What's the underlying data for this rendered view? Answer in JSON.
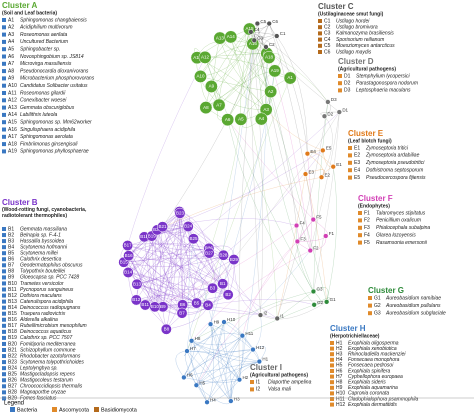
{
  "clusters": [
    {
      "title": "Cluster A",
      "subtitle": "(Soil and Leaf bacteria)",
      "items": [
        {
          "id": "A1",
          "name": "Sphingomonas changbaiensis"
        },
        {
          "id": "A2",
          "name": "Acidiphilium multivorum"
        },
        {
          "id": "A3",
          "name": "Roseomonas aerilata"
        },
        {
          "id": "A4",
          "name": "Uncultured Bacterium"
        },
        {
          "id": "A5",
          "name": "Sphingobacter sp."
        },
        {
          "id": "A6",
          "name": "Novosphingobium sp. JS814"
        },
        {
          "id": "A7",
          "name": "Microvirga massiliensis"
        },
        {
          "id": "A8",
          "name": "Pseudonocardia dioxanivorans"
        },
        {
          "id": "A9",
          "name": "Microbacterium phosphorovorans"
        },
        {
          "id": "A10",
          "name": "Candidatus Solibacter usitatus"
        },
        {
          "id": "A11",
          "name": "Roseomonas gilardii"
        },
        {
          "id": "A12",
          "name": "Conexibacter woesei"
        },
        {
          "id": "A13",
          "name": "Gemmata obscuriglobus"
        },
        {
          "id": "A14",
          "name": "Labilithrix luteola"
        },
        {
          "id": "A15",
          "name": "Sphingomonas sp. Mm62worker"
        },
        {
          "id": "A16",
          "name": "Singulisphaera acidiphila"
        },
        {
          "id": "A17",
          "name": "Sphingomonas aerolata"
        },
        {
          "id": "A18",
          "name": "Fimbriimonas ginsengisoli"
        },
        {
          "id": "A19",
          "name": "Sphingomonas phyllosphaerae"
        }
      ]
    },
    {
      "title": "Cluster B",
      "subtitle": "(Wood-rotting fungi, cyanobacteria, radiotolerant thermophiles)",
      "items": [
        {
          "id": "B1",
          "name": "Gemmata massiliana"
        },
        {
          "id": "B2",
          "name": "Belnapia sp. F-4-1"
        },
        {
          "id": "B3",
          "name": "Hassallia byssoidea"
        },
        {
          "id": "B4",
          "name": "Scytonema hofmanni"
        },
        {
          "id": "B5",
          "name": "Scytonema millei"
        },
        {
          "id": "B6",
          "name": "Calothrix desertica"
        },
        {
          "id": "B7",
          "name": "Geodermatophilus obscurus"
        },
        {
          "id": "B8",
          "name": "Tolypothrix bouteillei"
        },
        {
          "id": "B9",
          "name": "Gloeocapsa sp. PCC 7428"
        },
        {
          "id": "B10",
          "name": "Trametes versicolor"
        },
        {
          "id": "B11",
          "name": "Pycnoporus sanguineus"
        },
        {
          "id": "B12",
          "name": "Dothiora maculans"
        },
        {
          "id": "B13",
          "name": "Catenulispora acidiphila"
        },
        {
          "id": "B14",
          "name": "Deinococcus radiopugnans"
        },
        {
          "id": "B15",
          "name": "Truepera radiovictrix"
        },
        {
          "id": "B16",
          "name": "Alderella alkalina"
        },
        {
          "id": "B17",
          "name": "Rubellimicrobium mesophilum"
        },
        {
          "id": "B18",
          "name": "Deinococcus aquaticus"
        },
        {
          "id": "B19",
          "name": "Calothrix sp. PCC 7507"
        },
        {
          "id": "B20",
          "name": "Fomitiporia mediterranea"
        },
        {
          "id": "B21",
          "name": "Schizophyllum commune"
        },
        {
          "id": "B22",
          "name": "Rhodobacter azotoformans"
        },
        {
          "id": "B23",
          "name": "Scytonema tolypothrichoides"
        },
        {
          "id": "B24",
          "name": "Leptolyngbya sp."
        },
        {
          "id": "B25",
          "name": "Mastigocladopsis repens"
        },
        {
          "id": "B26",
          "name": "Mastigocoleus testarum"
        },
        {
          "id": "B27",
          "name": "Chroococcidiopsis thermalis"
        },
        {
          "id": "B28",
          "name": "Magnaporthe oryzae"
        },
        {
          "id": "B29",
          "name": "Fomes fasciatus"
        }
      ]
    },
    {
      "title": "Cluster C",
      "subtitle": "(Ustilaginaceae smut fungi)",
      "items": [
        {
          "id": "C1",
          "name": "Ustilago hordei"
        },
        {
          "id": "C2",
          "name": "Ustilago bromivora"
        },
        {
          "id": "C3",
          "name": "Kalmanozyma brasiliensis"
        },
        {
          "id": "C4",
          "name": "Sporisorium reilianum"
        },
        {
          "id": "C5",
          "name": "Moesziomyces antarcticus"
        },
        {
          "id": "C6",
          "name": "Ustilago maydis"
        }
      ]
    },
    {
      "title": "Cluster D",
      "subtitle": "(Agricultural pathogens)",
      "items": [
        {
          "id": "D1",
          "name": "Stemphylium lycopersici"
        },
        {
          "id": "D2",
          "name": "Parastagonospora nodorum"
        },
        {
          "id": "D3",
          "name": "Leptosphaeria maculans"
        }
      ]
    },
    {
      "title": "Cluster E",
      "subtitle": "(Leaf blotch fungi)",
      "items": [
        {
          "id": "E1",
          "name": "Zymoseptoria tritici"
        },
        {
          "id": "E2",
          "name": "Zymoseptoria ardabiliae"
        },
        {
          "id": "E3",
          "name": "Zymoseptoria pseudotritici"
        },
        {
          "id": "E4",
          "name": "Dothistroma septosporum"
        },
        {
          "id": "E5",
          "name": "Pseudocercospora fijiensis"
        }
      ]
    },
    {
      "title": "Cluster F",
      "subtitle": "(Endophytes)",
      "items": [
        {
          "id": "F1",
          "name": "Talaromyces stipitatus"
        },
        {
          "id": "F2",
          "name": "Penicillium oxalicum"
        },
        {
          "id": "F3",
          "name": "Phialocephala subalpina"
        },
        {
          "id": "F4",
          "name": "Glarea lozoyensis"
        },
        {
          "id": "F5",
          "name": "Rasamsonia emersonii"
        }
      ]
    },
    {
      "title": "Cluster G",
      "subtitle": "",
      "items": [
        {
          "id": "G1",
          "name": "Aureobasidium namibiae"
        },
        {
          "id": "G2",
          "name": "Aureobasidium pullulans"
        },
        {
          "id": "G3",
          "name": "Aureobasidium subglaciale"
        }
      ]
    },
    {
      "title": "Cluster H",
      "subtitle": "(Herpotrichiellaceae)",
      "items": [
        {
          "id": "H1",
          "name": "Exophiala oligosperma"
        },
        {
          "id": "H2",
          "name": "Exophiala xenobiotica"
        },
        {
          "id": "H3",
          "name": "Rhinocladiella mackenziei"
        },
        {
          "id": "H4",
          "name": "Fonsecaea monophora"
        },
        {
          "id": "H5",
          "name": "Fonsecaea pedrosoi"
        },
        {
          "id": "H6",
          "name": "Exophiala spinifera"
        },
        {
          "id": "H7",
          "name": "Cyphellophora europaea"
        },
        {
          "id": "H8",
          "name": "Exophiala sideris"
        },
        {
          "id": "H9",
          "name": "Exophiala aquamarina"
        },
        {
          "id": "H10",
          "name": "Capronia coronata"
        },
        {
          "id": "H11",
          "name": "Cladophialophora psammophila"
        },
        {
          "id": "H12",
          "name": "Exophiala dermatitidis"
        }
      ]
    },
    {
      "title": "Cluster I",
      "subtitle": "(Agricultural pathogens)",
      "items": [
        {
          "id": "I1",
          "name": "Diaporthe ampelina"
        },
        {
          "id": "I2",
          "name": "Valsa mali"
        }
      ]
    }
  ],
  "legend": {
    "title": "Legend",
    "entries": [
      "Bacteria",
      "Ascomycota",
      "Basidiomycota"
    ]
  }
}
